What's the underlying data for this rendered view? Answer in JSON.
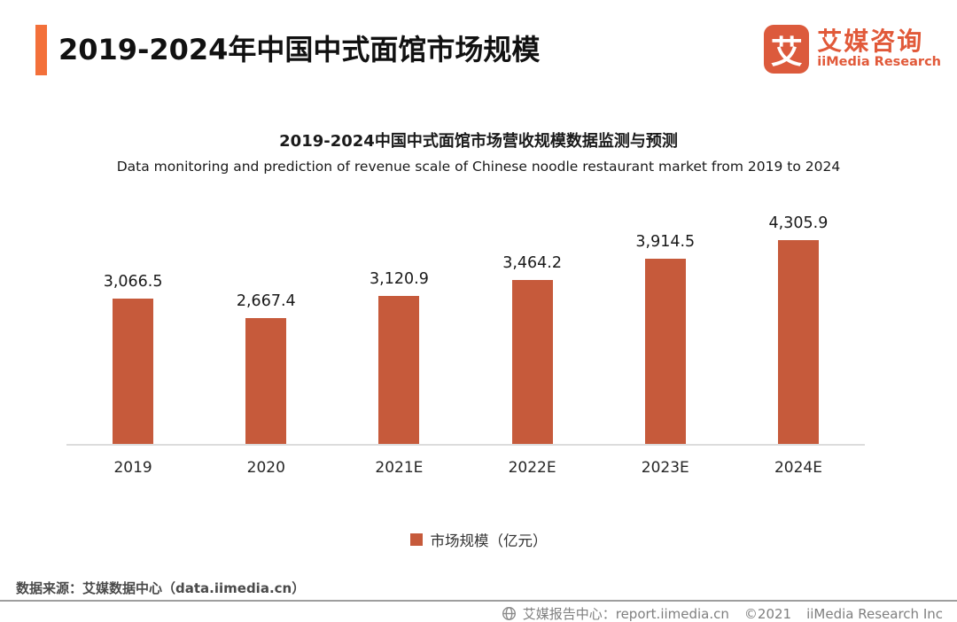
{
  "header": {
    "title": "2019-2024年中国中式面馆市场规模",
    "logo": {
      "glyph": "艾",
      "brand_cn": "艾媒咨询",
      "brand_en": "iiMedia Research"
    }
  },
  "chart": {
    "title_cn": "2019-2024中国中式面馆市场营收规模数据监测与预测",
    "title_en": "Data monitoring and prediction of revenue scale of Chinese noodle restaurant market from 2019 to 2024",
    "legend": "市场规模（亿元）"
  },
  "chart_data": {
    "type": "bar",
    "title": "2019-2024中国中式面馆市场营收规模数据监测与预测",
    "subtitle": "Data monitoring and prediction of revenue scale of Chinese noodle restaurant market from 2019 to 2024",
    "categories": [
      "2019",
      "2020",
      "2021E",
      "2022E",
      "2023E",
      "2024E"
    ],
    "values": [
      3066.5,
      2667.4,
      3120.9,
      3464.2,
      3914.5,
      4305.9
    ],
    "value_labels": [
      "3,066.5",
      "2,667.4",
      "3,120.9",
      "3,464.2",
      "3,914.5",
      "4,305.9"
    ],
    "legend_entries": [
      "市场规模（亿元）"
    ],
    "legend_position": "bottom",
    "xlabel": "",
    "ylabel": "",
    "ylim": [
      0,
      4500
    ],
    "y_axis_visible": false,
    "grid": false,
    "bar_color": "#C65A3B"
  },
  "colors": {
    "accent_bar": "#F3703A",
    "logo_orange": "#DC5A3C",
    "brand_text": "#E15939",
    "bar_orange": "#C65A3B",
    "footer_gray": "#7F7F7F"
  },
  "footer": {
    "source": "数据来源：艾媒数据中心（data.iimedia.cn）",
    "report_center": "艾媒报告中心：report.iimedia.cn",
    "copyright": "©2021",
    "company": "iiMedia Research Inc"
  }
}
